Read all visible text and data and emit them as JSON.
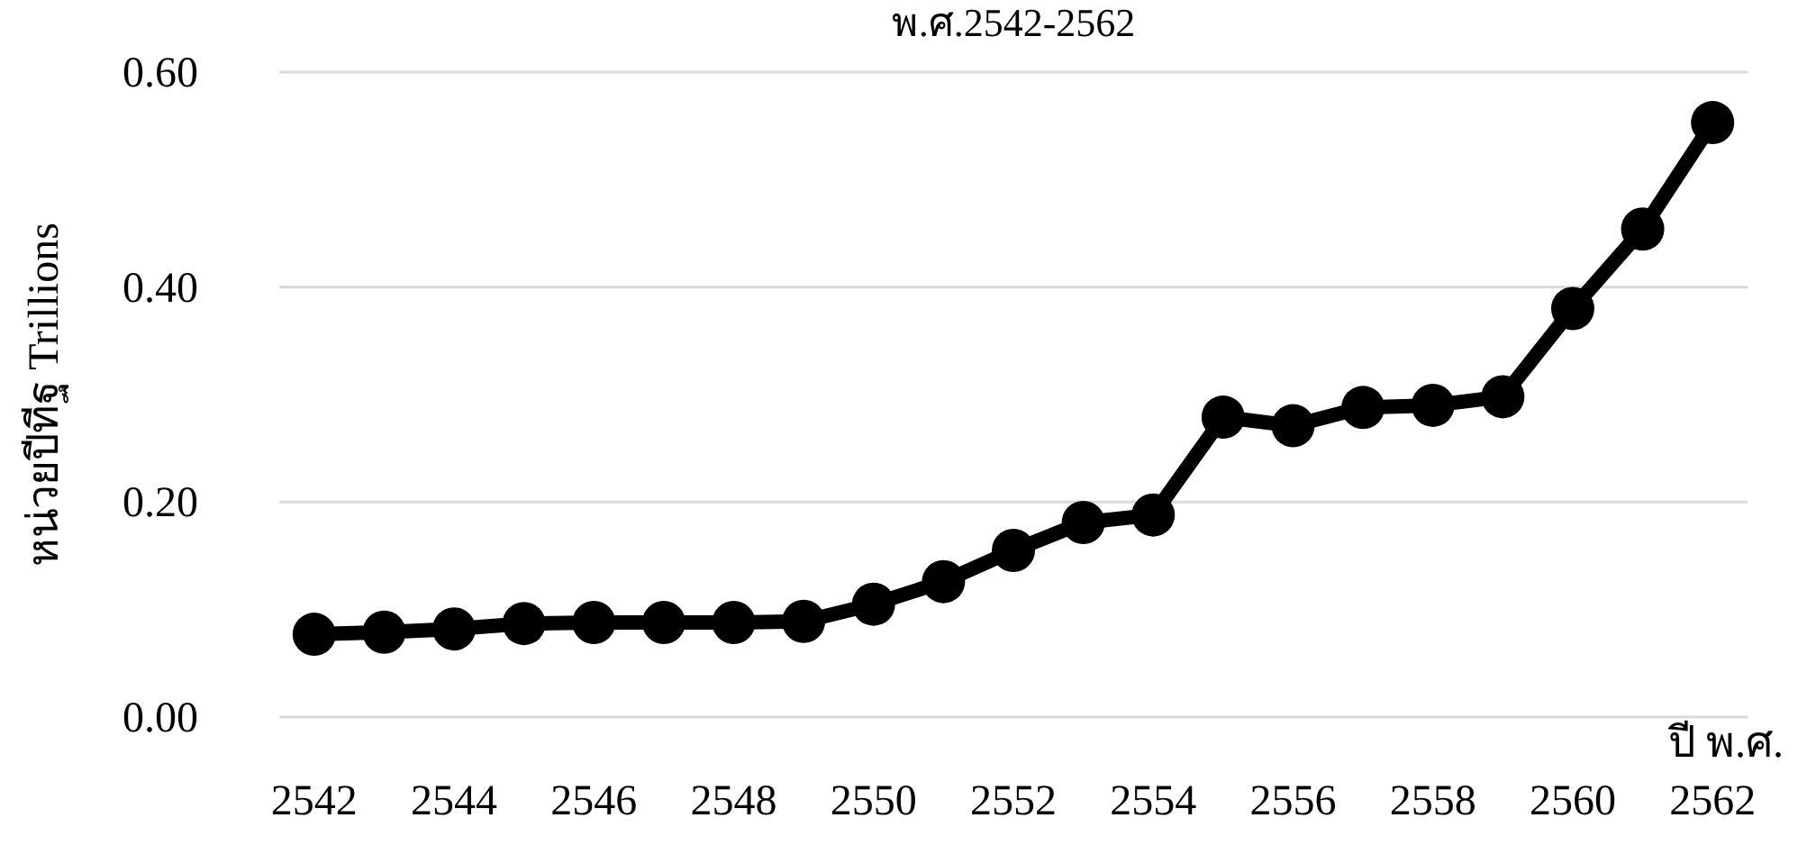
{
  "chart_data": {
    "type": "line",
    "title": "พ.ศ.2542-2562",
    "ylabel": "หน่วยปีทีฐ  Trillions",
    "xlabel": "ปี พ.ศ.",
    "categories": [
      "2542",
      null,
      "2544",
      null,
      "2546",
      null,
      "2548",
      null,
      "2550",
      null,
      "2552",
      null,
      "2554",
      null,
      "2556",
      null,
      "2558",
      null,
      "2560",
      null,
      "2562"
    ],
    "values": [
      0.077,
      0.079,
      0.082,
      0.087,
      0.088,
      0.088,
      0.088,
      0.089,
      0.105,
      0.126,
      0.155,
      0.181,
      0.188,
      0.279,
      0.271,
      0.288,
      0.29,
      0.298,
      0.38,
      0.454,
      0.553
    ],
    "color": "#000000",
    "marker": "circle",
    "line_style": "solid",
    "ylim": [
      0,
      0.6
    ],
    "yticks": [
      {
        "value": 0,
        "label": "0.00"
      },
      {
        "value": 0.2,
        "label": "0.20"
      },
      {
        "value": 0.4,
        "label": "0.40"
      },
      {
        "value": 0.6,
        "label": "0.60"
      }
    ],
    "grid": "y"
  }
}
